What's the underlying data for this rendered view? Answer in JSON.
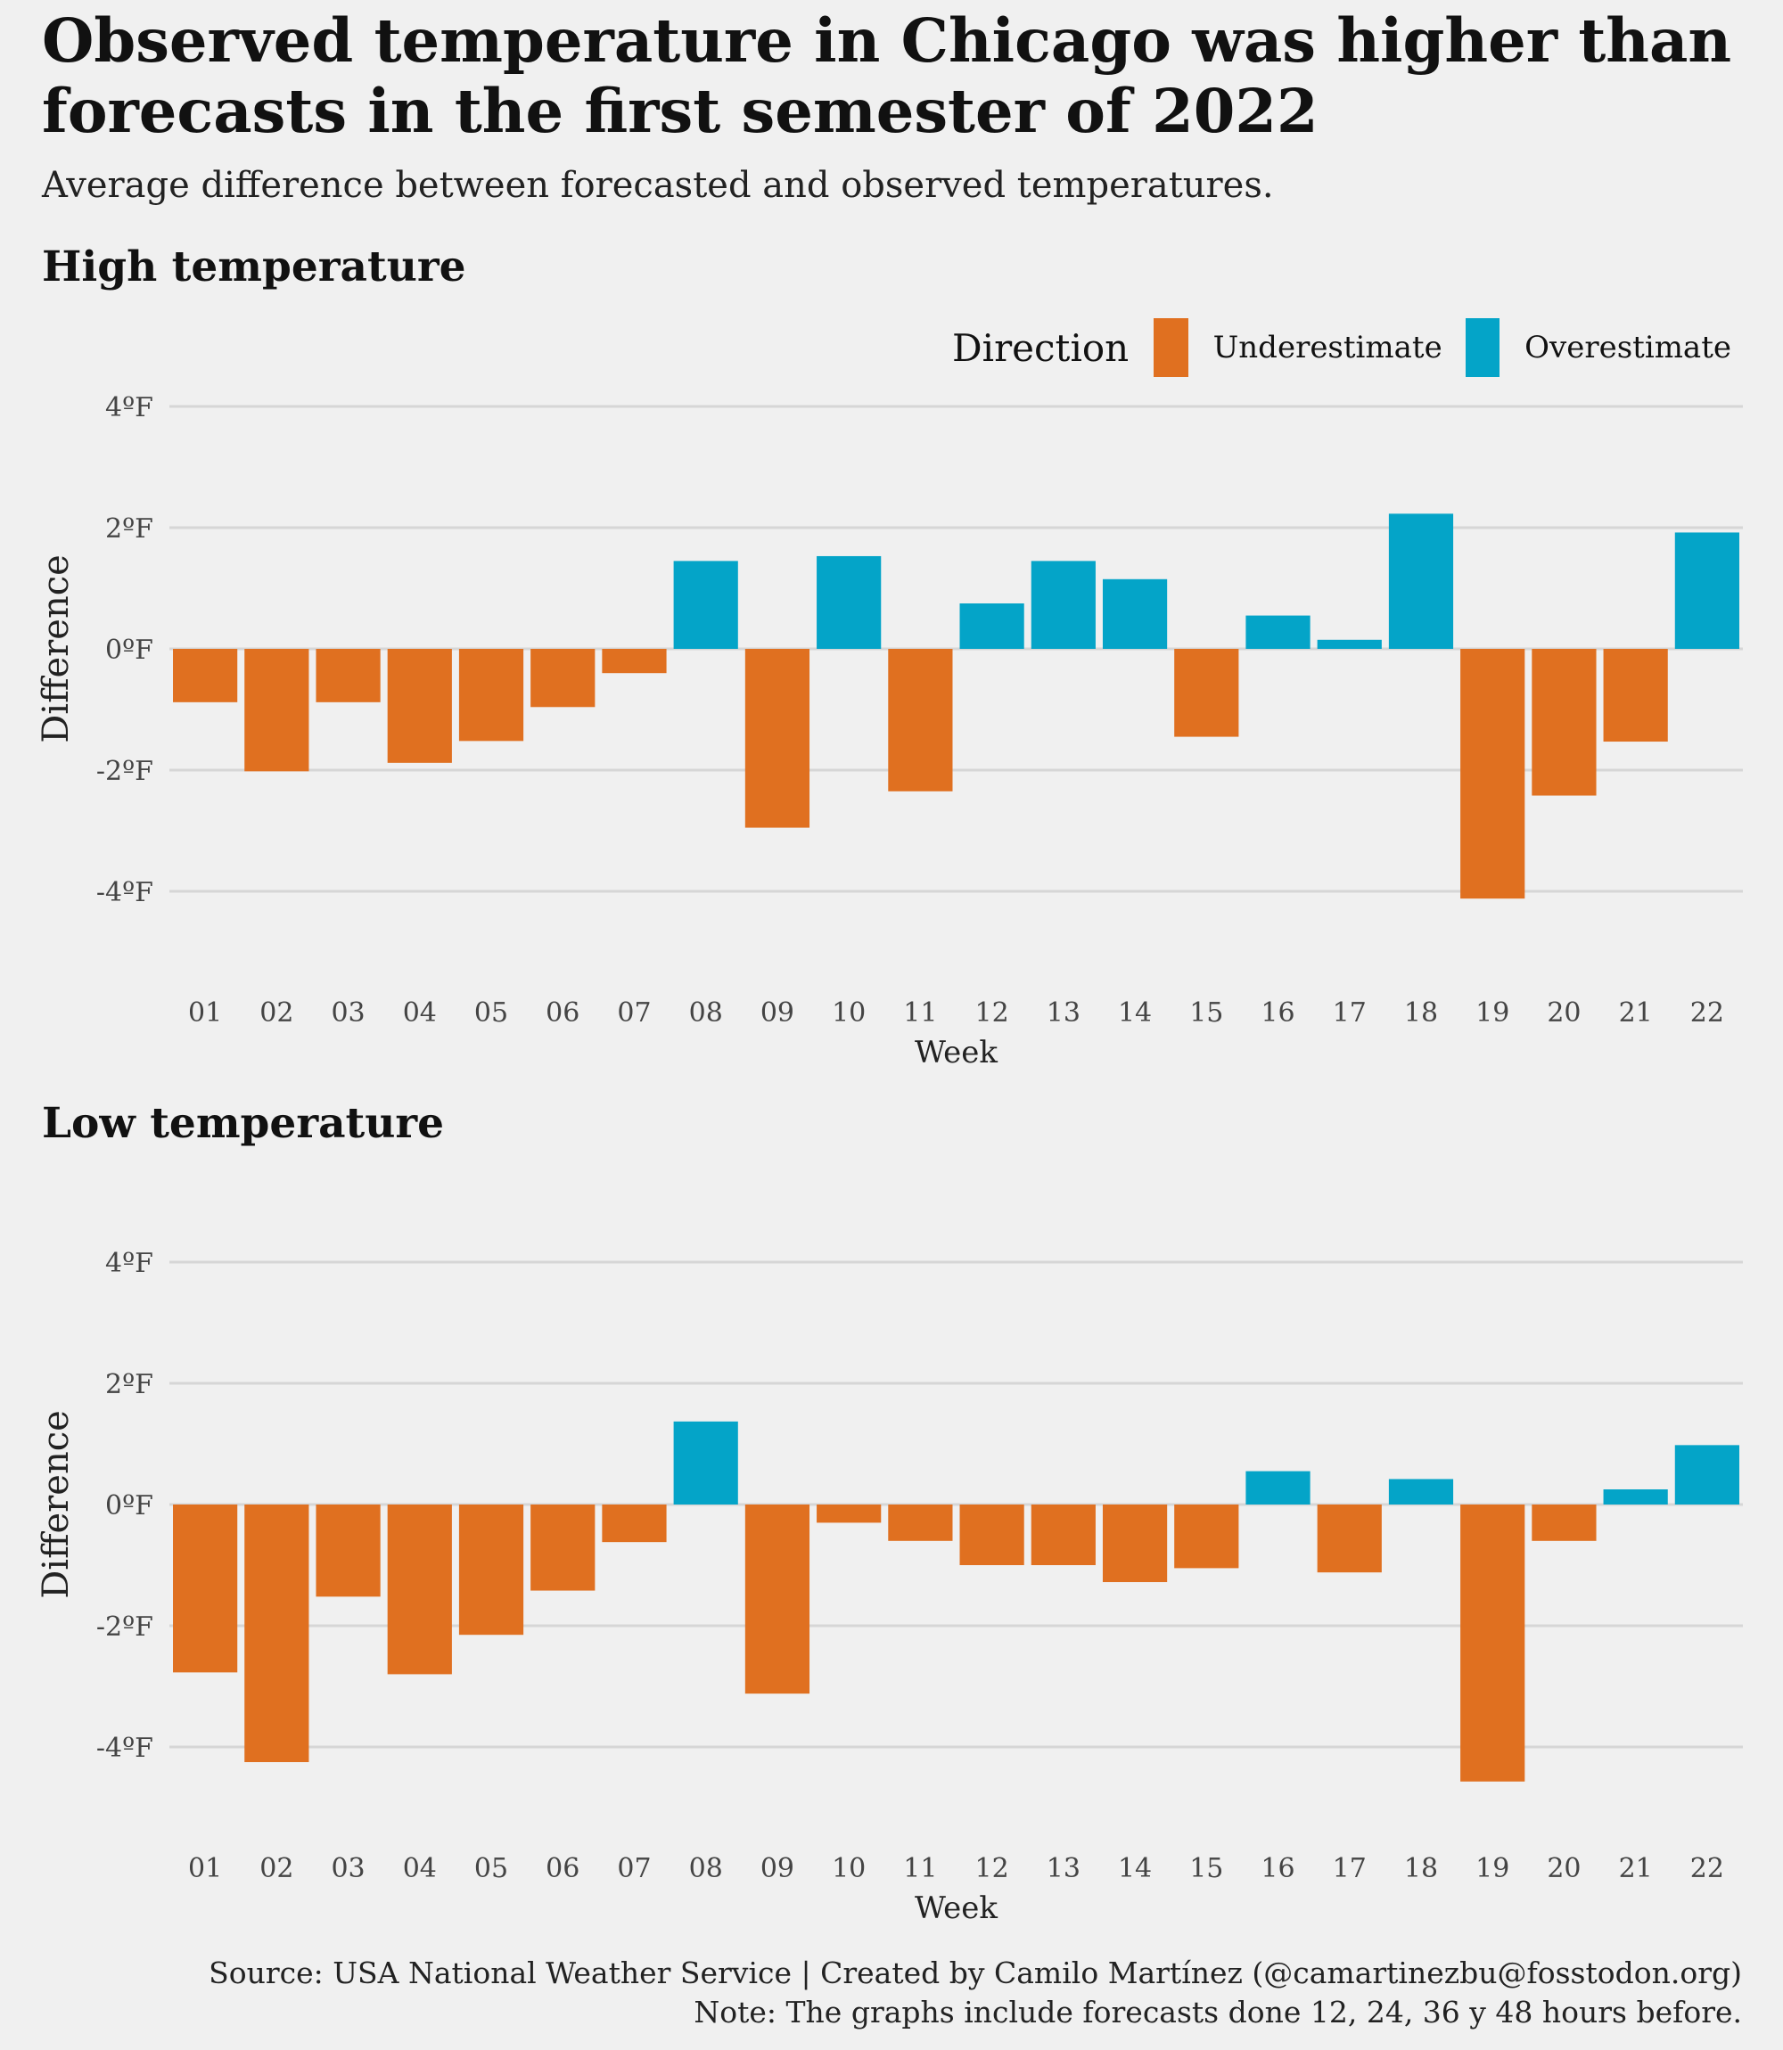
{
  "title": "Observed temperature in Chicago was higher than forecasts in the first semester of 2022",
  "subtitle": "Average difference between forecasted and observed temperatures.",
  "legend": {
    "title": "Direction",
    "items": [
      {
        "label": "Underestimate",
        "color": "#e07020"
      },
      {
        "label": "Overestimate",
        "color": "#04a4c8"
      }
    ]
  },
  "footer": {
    "source": "Source: USA National Weather Service | Created by Camilo Martínez (@camartinezbu@fosstodon.org)",
    "note": "Note: The graphs include forecasts done 12, 24, 36 y 48 hours before."
  },
  "chart_data": [
    {
      "type": "bar",
      "title": "High temperature",
      "xlabel": "Week",
      "ylabel": "Difference",
      "yticks": [
        4,
        2,
        0,
        -2,
        -4
      ],
      "ytick_labels": [
        "4ºF",
        "2ºF",
        "0ºF",
        "-2ºF",
        "-4ºF"
      ],
      "ylim": [
        -5.5,
        4.2
      ],
      "grid": true,
      "legend_position": "top-right",
      "categories": [
        "01",
        "02",
        "03",
        "04",
        "05",
        "06",
        "07",
        "08",
        "09",
        "10",
        "11",
        "12",
        "13",
        "14",
        "15",
        "16",
        "17",
        "18",
        "19",
        "20",
        "21",
        "22"
      ],
      "values": [
        -0.88,
        -2.02,
        -0.88,
        -1.88,
        -1.52,
        -0.96,
        -0.4,
        1.45,
        -2.95,
        1.53,
        -2.35,
        0.75,
        1.45,
        1.15,
        -1.45,
        0.55,
        0.15,
        2.23,
        -4.12,
        -2.42,
        -1.53,
        1.92
      ]
    },
    {
      "type": "bar",
      "title": "Low temperature",
      "xlabel": "Week",
      "ylabel": "Difference",
      "yticks": [
        4,
        2,
        0,
        -2,
        -4
      ],
      "ytick_labels": [
        "4ºF",
        "2ºF",
        "0ºF",
        "-2ºF",
        "-4ºF"
      ],
      "ylim": [
        -5.5,
        4.2
      ],
      "grid": true,
      "categories": [
        "01",
        "02",
        "03",
        "04",
        "05",
        "06",
        "07",
        "08",
        "09",
        "10",
        "11",
        "12",
        "13",
        "14",
        "15",
        "16",
        "17",
        "18",
        "19",
        "20",
        "21",
        "22"
      ],
      "values": [
        -2.77,
        -4.25,
        -1.52,
        -2.8,
        -2.15,
        -1.42,
        -0.62,
        1.37,
        -3.12,
        -0.3,
        -0.6,
        -1.0,
        -1.0,
        -1.28,
        -1.05,
        0.55,
        -1.12,
        0.42,
        -4.57,
        -0.6,
        0.25,
        0.98
      ]
    }
  ]
}
